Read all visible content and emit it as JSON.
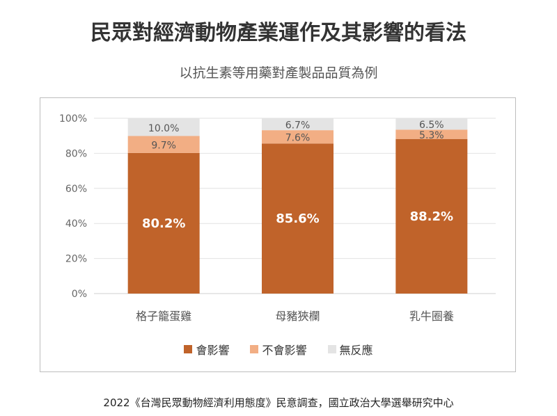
{
  "title": "民眾對經濟動物產業運作及其影響的看法",
  "subtitle": "以抗生素等用藥對產製品品質為例",
  "source": "2022《台灣民眾動物經濟利用態度》民意調查，國立政治大學選舉研究中心",
  "chart_data": {
    "type": "bar",
    "stacked": true,
    "title": "以抗生素等用藥對產製品品質為例",
    "categories": [
      "格子籠蛋雞",
      "母豬狹欄",
      "乳牛圈養"
    ],
    "series": [
      {
        "name": "會影響",
        "values": [
          80.2,
          85.6,
          88.2
        ],
        "labels": [
          "80.2%",
          "85.6%",
          "88.2%"
        ],
        "color": "#c0632a"
      },
      {
        "name": "不會影響",
        "values": [
          9.7,
          7.6,
          5.3
        ],
        "labels": [
          "9.7%",
          "7.6%",
          "5.3%"
        ],
        "color": "#f2ae84"
      },
      {
        "name": "無反應",
        "values": [
          10.0,
          6.7,
          6.5
        ],
        "labels": [
          "10.0%",
          "6.7%",
          "6.5%"
        ],
        "color": "#e4e4e4"
      }
    ],
    "yticks": [
      "0%",
      "20%",
      "40%",
      "60%",
      "80%",
      "100%"
    ],
    "ylim": [
      0,
      100
    ],
    "grid": true,
    "legend": "bottom"
  }
}
